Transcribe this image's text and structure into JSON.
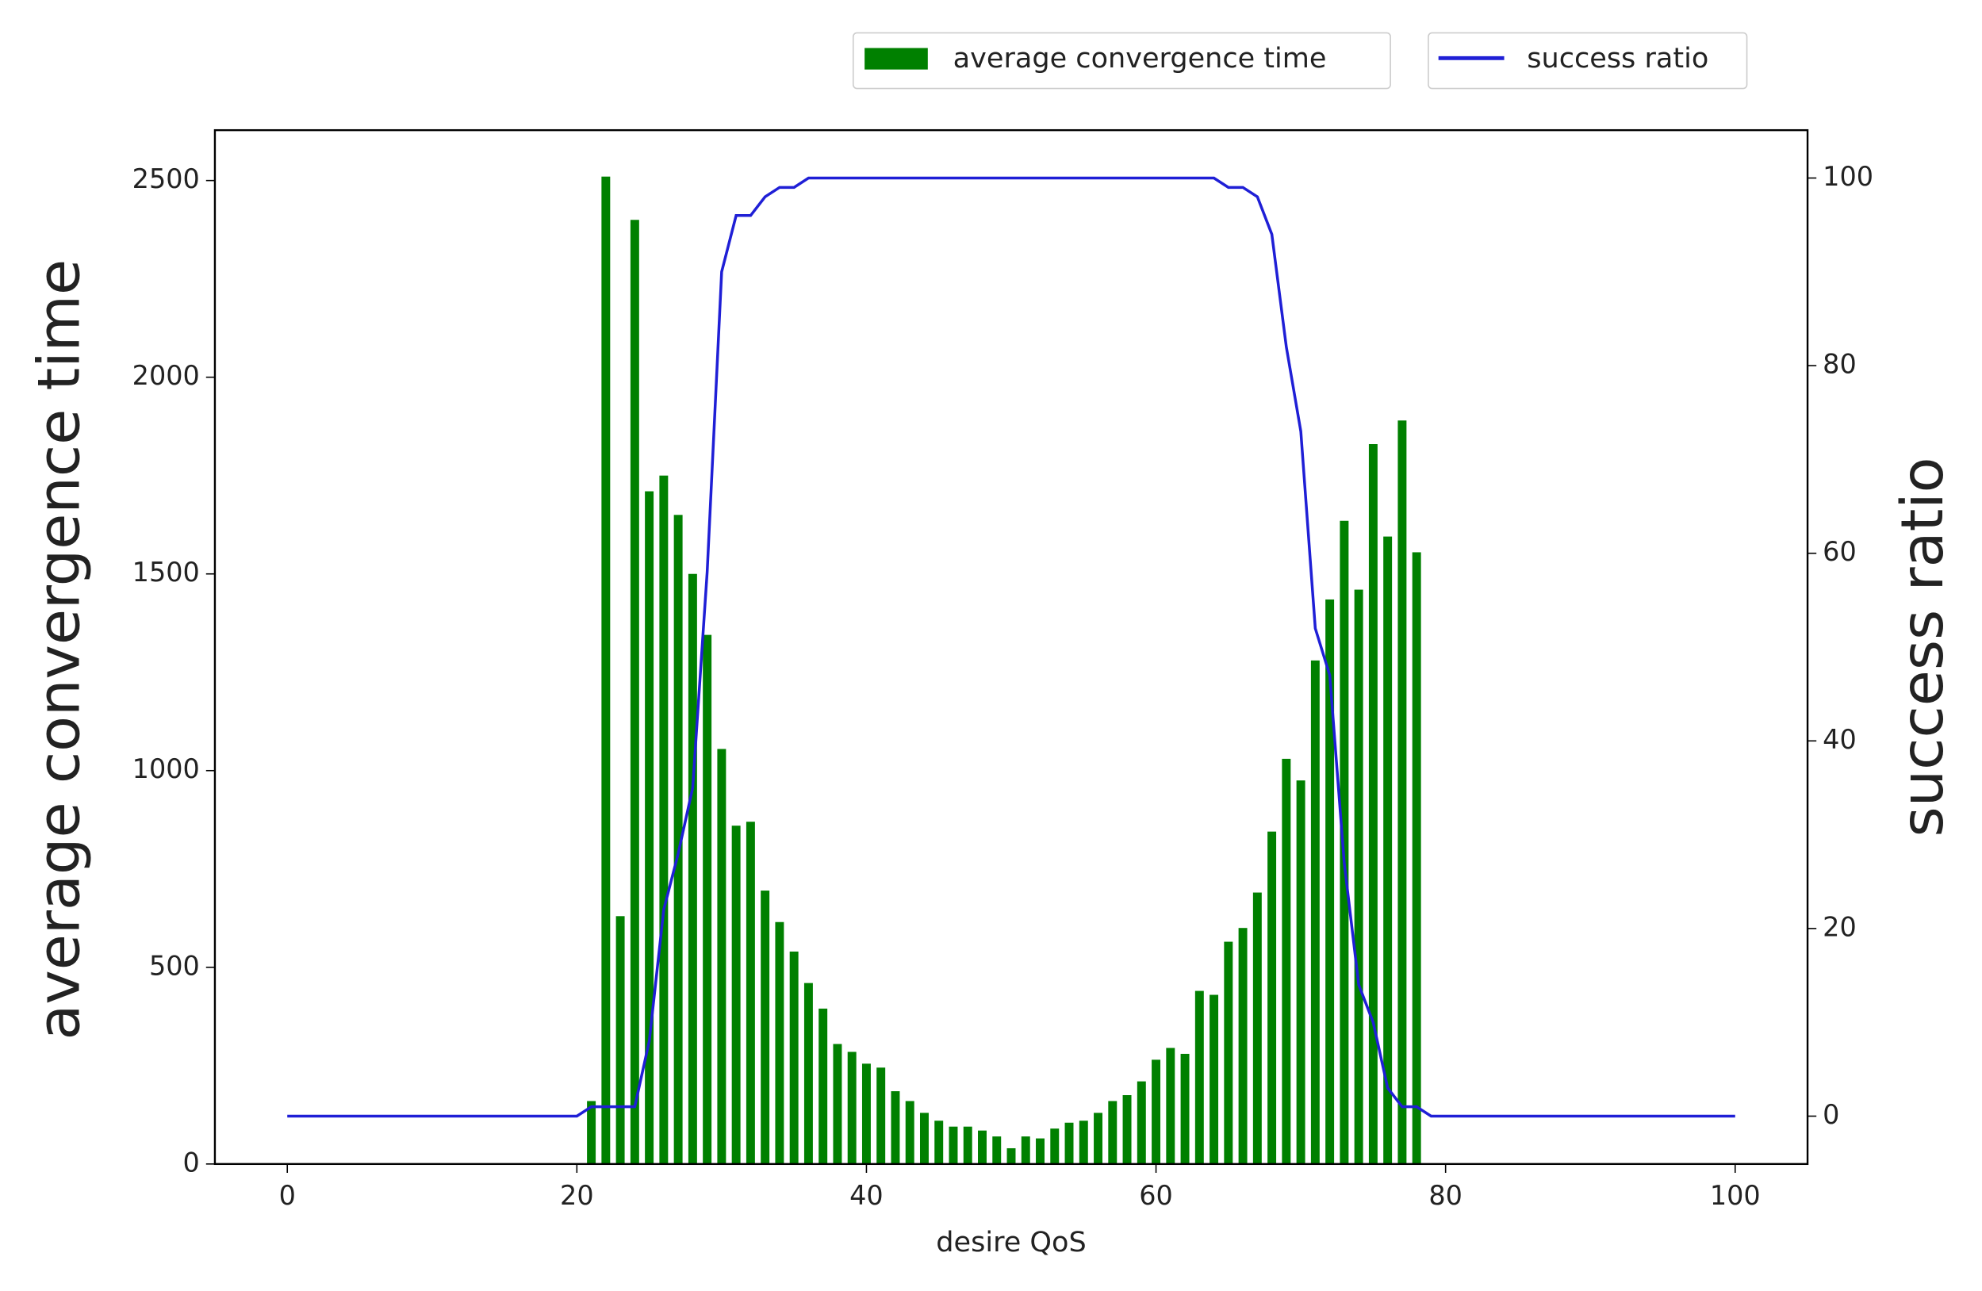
{
  "chart_data": {
    "type": "bar",
    "xlabel": "desire QoS",
    "ylabel": "average convergence time",
    "y2label": "success ratio",
    "ylabel_color": "#008000",
    "y2label_color": "#1f1fd6",
    "xlim": [
      -5,
      105
    ],
    "xticks": [
      0,
      20,
      40,
      60,
      80,
      100
    ],
    "ylim": [
      0,
      2628
    ],
    "yticks": [
      0,
      500,
      1000,
      1500,
      2000,
      2500
    ],
    "y2lim": [
      -5.1,
      105.1
    ],
    "y2ticks": [
      0,
      20,
      40,
      60,
      80,
      100
    ],
    "legend": "top",
    "series": [
      {
        "name": "average convergence time",
        "color": "#008000",
        "type": "bar",
        "x": [
          21,
          22,
          23,
          24,
          25,
          26,
          27,
          28,
          29,
          30,
          31,
          32,
          33,
          34,
          35,
          36,
          37,
          38,
          39,
          40,
          41,
          42,
          43,
          44,
          45,
          46,
          47,
          48,
          49,
          50,
          51,
          52,
          53,
          54,
          55,
          56,
          57,
          58,
          59,
          60,
          61,
          62,
          63,
          64,
          65,
          66,
          67,
          68,
          69,
          70,
          71,
          72,
          73,
          74,
          75,
          76,
          77,
          78
        ],
        "values": [
          160,
          2510,
          630,
          2400,
          1710,
          1750,
          1650,
          1500,
          1345,
          1055,
          860,
          870,
          695,
          615,
          540,
          460,
          395,
          305,
          285,
          255,
          245,
          185,
          160,
          130,
          110,
          95,
          95,
          85,
          70,
          40,
          70,
          65,
          90,
          105,
          110,
          130,
          160,
          175,
          210,
          265,
          295,
          280,
          440,
          430,
          565,
          600,
          690,
          845,
          1030,
          975,
          1280,
          1435,
          1635,
          1460,
          1830,
          1595,
          1890,
          1555
        ]
      },
      {
        "name": "success ratio",
        "color": "#1f1fd6",
        "type": "line",
        "axis": "y2",
        "x": [
          0,
          1,
          2,
          3,
          4,
          5,
          6,
          7,
          8,
          9,
          10,
          11,
          12,
          13,
          14,
          15,
          16,
          17,
          18,
          19,
          20,
          21,
          22,
          23,
          24,
          25,
          26,
          27,
          28,
          29,
          30,
          31,
          32,
          33,
          34,
          35,
          36,
          37,
          38,
          39,
          40,
          41,
          42,
          43,
          44,
          45,
          46,
          47,
          48,
          49,
          50,
          51,
          52,
          53,
          54,
          55,
          56,
          57,
          58,
          59,
          60,
          61,
          62,
          63,
          64,
          65,
          66,
          67,
          68,
          69,
          70,
          71,
          72,
          73,
          74,
          75,
          76,
          77,
          78,
          79,
          80,
          81,
          82,
          83,
          84,
          85,
          86,
          87,
          88,
          89,
          90,
          91,
          92,
          93,
          94,
          95,
          96,
          97,
          98,
          99,
          100
        ],
        "values": [
          0,
          0,
          0,
          0,
          0,
          0,
          0,
          0,
          0,
          0,
          0,
          0,
          0,
          0,
          0,
          0,
          0,
          0,
          0,
          0,
          0,
          1,
          1,
          1,
          1,
          8,
          22,
          28,
          35,
          58,
          90,
          96,
          96,
          98,
          99,
          99,
          100,
          100,
          100,
          100,
          100,
          100,
          100,
          100,
          100,
          100,
          100,
          100,
          100,
          100,
          100,
          100,
          100,
          100,
          100,
          100,
          100,
          100,
          100,
          100,
          100,
          100,
          100,
          100,
          100,
          99,
          99,
          98,
          94,
          82,
          73,
          52,
          47,
          27,
          14,
          10,
          3,
          1,
          1,
          0,
          0,
          0,
          0,
          0,
          0,
          0,
          0,
          0,
          0,
          0,
          0,
          0,
          0,
          0,
          0,
          0,
          0,
          0,
          0,
          0,
          0
        ]
      }
    ]
  }
}
